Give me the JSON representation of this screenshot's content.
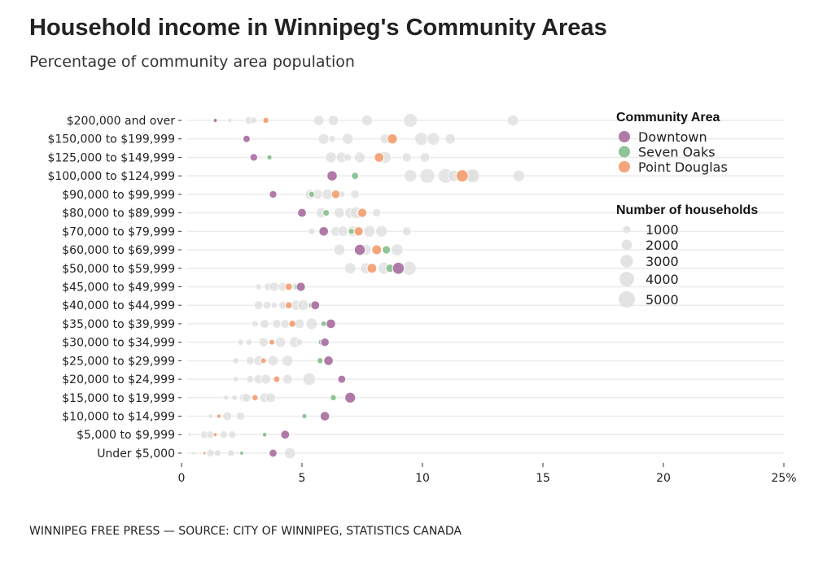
{
  "chart_data": {
    "type": "scatter",
    "title": "Household income in Winnipeg's Community Areas",
    "subtitle": "Percentage of community area population",
    "source": "WINNIPEG FREE PRESS — SOURCE: CITY OF WINNIPEG, STATISTICS CANADA",
    "xlim": [
      0,
      25
    ],
    "x_ticks": [
      "0",
      "5",
      "10",
      "15",
      "20",
      "25%"
    ],
    "x_tick_values": [
      0,
      5,
      10,
      15,
      20,
      25
    ],
    "grid": true,
    "legend_placement": "top-right",
    "categories": [
      "$200,000 and over",
      "$150,000 to $199,999",
      "$125,000 to $149,999",
      "$100,000 to $124,999",
      "$90,000 to $99,999",
      "$80,000 to $89,999",
      "$70,000 to $79,999",
      "$60,000 to $69,999",
      "$50,000 to $59,999",
      "$45,000 to $49,999",
      "$40,000 to $44,999",
      "$35,000 to $39,999",
      "$30,000 to $34,999",
      "$25,000 to $29,999",
      "$20,000 to $24,999",
      "$15,000 to $19,999",
      "$10,000 to $14,999",
      "$5,000 to $9,999",
      "Under $5,000"
    ],
    "legend": {
      "color_title": "Community Area",
      "size_title": "Number of households",
      "size_values": [
        1000,
        2000,
        3000,
        4000,
        5000
      ],
      "size_labels": [
        "1000",
        "2000",
        "3000",
        "4000",
        "5000"
      ]
    },
    "other_color": "#dddddd",
    "other_areas": [
      {
        "x": [
          0.7,
          2.0,
          2.8,
          3.0,
          5.7,
          6.3,
          7.7,
          9.5,
          13.75
        ],
        "households": [
          100,
          400,
          1200,
          800,
          2000,
          2000,
          2200,
          3500,
          2300
        ]
      },
      {
        "x": [
          5.9,
          6.25,
          6.9,
          8.45,
          9.95,
          10.45,
          11.15
        ],
        "households": [
          2200,
          900,
          2300,
          1800,
          3300,
          3000,
          2000
        ]
      },
      {
        "x": [
          6.2,
          6.65,
          6.9,
          7.4,
          8.45,
          9.35,
          10.1
        ],
        "households": [
          2200,
          2200,
          1000,
          2200,
          2700,
          1600,
          1700
        ]
      },
      {
        "x": [
          9.5,
          10.2,
          10.95,
          11.3,
          12.0,
          12.1,
          14.0
        ],
        "households": [
          3000,
          4000,
          4000,
          2500,
          3500,
          3500,
          2500
        ]
      },
      {
        "x": [
          5.35,
          5.65,
          6.05,
          6.65,
          7.2
        ],
        "households": [
          2000,
          1800,
          2200,
          800,
          1400
        ]
      },
      {
        "x": [
          5.8,
          6.55,
          7.0,
          7.25,
          8.1
        ],
        "households": [
          2000,
          2000,
          2200,
          2700,
          1300
        ]
      },
      {
        "x": [
          5.4,
          6.4,
          6.7,
          7.1,
          7.8,
          8.3,
          9.35
        ],
        "households": [
          900,
          1800,
          2000,
          2200,
          2500,
          2500,
          1500
        ]
      },
      {
        "x": [
          6.55,
          7.65,
          8.95
        ],
        "households": [
          2400,
          2300,
          2700
        ]
      },
      {
        "x": [
          7.0,
          7.65,
          8.4,
          9.45
        ],
        "households": [
          2400,
          2300,
          2700,
          3700
        ]
      },
      {
        "x": [
          3.2,
          3.6,
          3.85,
          4.2,
          4.75
        ],
        "households": [
          700,
          1200,
          1600,
          1500,
          1300
        ]
      },
      {
        "x": [
          3.2,
          3.55,
          3.85,
          4.2,
          4.75,
          5.05
        ],
        "households": [
          1500,
          1200,
          700,
          1100,
          2000,
          2300
        ]
      },
      {
        "x": [
          3.05,
          3.45,
          3.95,
          4.3,
          4.9,
          5.4
        ],
        "households": [
          800,
          1500,
          1500,
          1500,
          1800,
          2500
        ]
      },
      {
        "x": [
          2.45,
          2.8,
          3.4,
          4.1,
          4.7,
          4.9
        ],
        "households": [
          700,
          700,
          1600,
          2000,
          2200,
          800
        ]
      },
      {
        "x": [
          2.25,
          2.85,
          3.2,
          3.8,
          4.4
        ],
        "households": [
          700,
          1200,
          1800,
          2000,
          2300
        ]
      },
      {
        "x": [
          2.25,
          2.85,
          3.2,
          3.5,
          4.4,
          5.3
        ],
        "households": [
          600,
          1000,
          1600,
          1800,
          1800,
          3000
        ]
      },
      {
        "x": [
          1.85,
          2.2,
          2.6,
          2.7,
          3.45,
          3.7
        ],
        "households": [
          500,
          600,
          1500,
          1500,
          1800,
          1800
        ]
      },
      {
        "x": [
          1.2,
          1.9,
          2.45
        ],
        "households": [
          400,
          1500,
          1300
        ]
      },
      {
        "x": [
          0.35,
          0.95,
          1.2,
          1.75,
          2.1
        ],
        "households": [
          200,
          1100,
          1100,
          1100,
          1100
        ]
      },
      {
        "x": [
          0.5,
          1.2,
          1.5,
          2.05,
          4.5
        ],
        "households": [
          200,
          1100,
          900,
          900,
          2300
        ]
      }
    ],
    "series": [
      {
        "name": "Seven Oaks",
        "color": "#8fc494",
        "x": [
          null,
          2.6,
          3.65,
          7.2,
          5.4,
          6.0,
          7.05,
          8.5,
          8.65,
          4.8,
          5.4,
          5.9,
          5.8,
          5.75,
          6.6,
          6.3,
          5.1,
          3.45,
          2.5
        ],
        "households": [
          null,
          300,
          500,
          1000,
          700,
          800,
          700,
          1300,
          1300,
          700,
          700,
          600,
          700,
          700,
          700,
          700,
          500,
          400,
          300
        ]
      },
      {
        "name": "Point Douglas",
        "color": "#f4a57a",
        "x": [
          3.5,
          8.75,
          8.2,
          11.65,
          6.4,
          7.5,
          7.35,
          8.1,
          7.9,
          4.45,
          4.45,
          4.6,
          3.75,
          3.4,
          3.95,
          3.05,
          1.55,
          1.4,
          0.95
        ],
        "households": [
          700,
          1900,
          1700,
          2800,
          1400,
          1600,
          1600,
          1800,
          1800,
          1000,
          900,
          900,
          600,
          600,
          800,
          700,
          350,
          300,
          200
        ]
      },
      {
        "name": "Downtown",
        "color": "#b07aa8",
        "x": [
          1.4,
          2.7,
          3.0,
          6.25,
          3.8,
          5.0,
          5.9,
          7.4,
          9.0,
          4.95,
          5.55,
          6.2,
          5.95,
          6.1,
          6.65,
          7.0,
          5.95,
          4.3,
          3.8
        ],
        "households": [
          300,
          1000,
          1100,
          2000,
          1100,
          1500,
          1700,
          2300,
          2700,
          1600,
          1500,
          1700,
          1400,
          1700,
          1200,
          2200,
          1700,
          1500,
          1200
        ]
      }
    ],
    "legend_order": [
      "Downtown",
      "Seven Oaks",
      "Point Douglas"
    ]
  }
}
